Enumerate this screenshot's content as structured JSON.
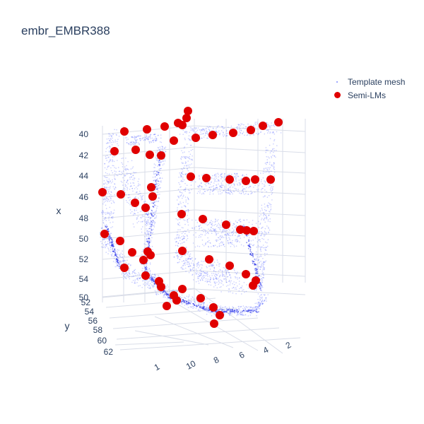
{
  "chart_data": {
    "type": "scatter",
    "title": "embr_EMBR388",
    "axes": {
      "x": {
        "label": "x",
        "ticks": [
          "40",
          "42",
          "44",
          "46",
          "48",
          "50",
          "52",
          "54",
          "50"
        ]
      },
      "y": {
        "label": "y",
        "ticks": [
          "52",
          "54",
          "56",
          "58",
          "60",
          "62"
        ]
      },
      "z": {
        "label": "",
        "ticks": [
          "2",
          "4",
          "6",
          "8",
          "10",
          "1"
        ]
      }
    },
    "legend": {
      "position": "top-right"
    },
    "grid": true,
    "series": [
      {
        "name": "Template mesh",
        "color": "#3344ff",
        "mode": "markers"
      },
      {
        "name": "Semi-LMs",
        "color": "#e00000",
        "mode": "markers",
        "points": [
          [
            176,
            186
          ],
          [
            162,
            214
          ],
          [
            192,
            212
          ],
          [
            212,
            219
          ],
          [
            228,
            220
          ],
          [
            208,
            183
          ],
          [
            233,
            179
          ],
          [
            246,
            199
          ],
          [
            252,
            174
          ],
          [
            258,
            177
          ],
          [
            264,
            167
          ],
          [
            266,
            157
          ],
          [
            145,
            272
          ],
          [
            171,
            275
          ],
          [
            214,
            265
          ],
          [
            216,
            278
          ],
          [
            191,
            287
          ],
          [
            206,
            294
          ],
          [
            148,
            331
          ],
          [
            170,
            341
          ],
          [
            187,
            357
          ],
          [
            203,
            368
          ],
          [
            209,
            356
          ],
          [
            213,
            361
          ],
          [
            176,
            379
          ],
          [
            206,
            390
          ],
          [
            225,
            398
          ],
          [
            228,
            406
          ],
          [
            258,
            409
          ],
          [
            246,
            418
          ],
          [
            250,
            425
          ],
          [
            236,
            433
          ],
          [
            284,
            422
          ],
          [
            302,
            435
          ],
          [
            311,
            446
          ],
          [
            303,
            458
          ],
          [
            277,
            195
          ],
          [
            301,
            191
          ],
          [
            330,
            188
          ],
          [
            355,
            184
          ],
          [
            372,
            178
          ],
          [
            394,
            173
          ],
          [
            270,
            250
          ],
          [
            292,
            252
          ],
          [
            325,
            254
          ],
          [
            348,
            256
          ],
          [
            361,
            254
          ],
          [
            383,
            254
          ],
          [
            257,
            303
          ],
          [
            287,
            310
          ],
          [
            320,
            318
          ],
          [
            340,
            325
          ],
          [
            349,
            326
          ],
          [
            359,
            327
          ],
          [
            258,
            355
          ],
          [
            296,
            367
          ],
          [
            325,
            376
          ],
          [
            348,
            388
          ],
          [
            362,
            397
          ],
          [
            358,
            404
          ]
        ]
      }
    ]
  }
}
